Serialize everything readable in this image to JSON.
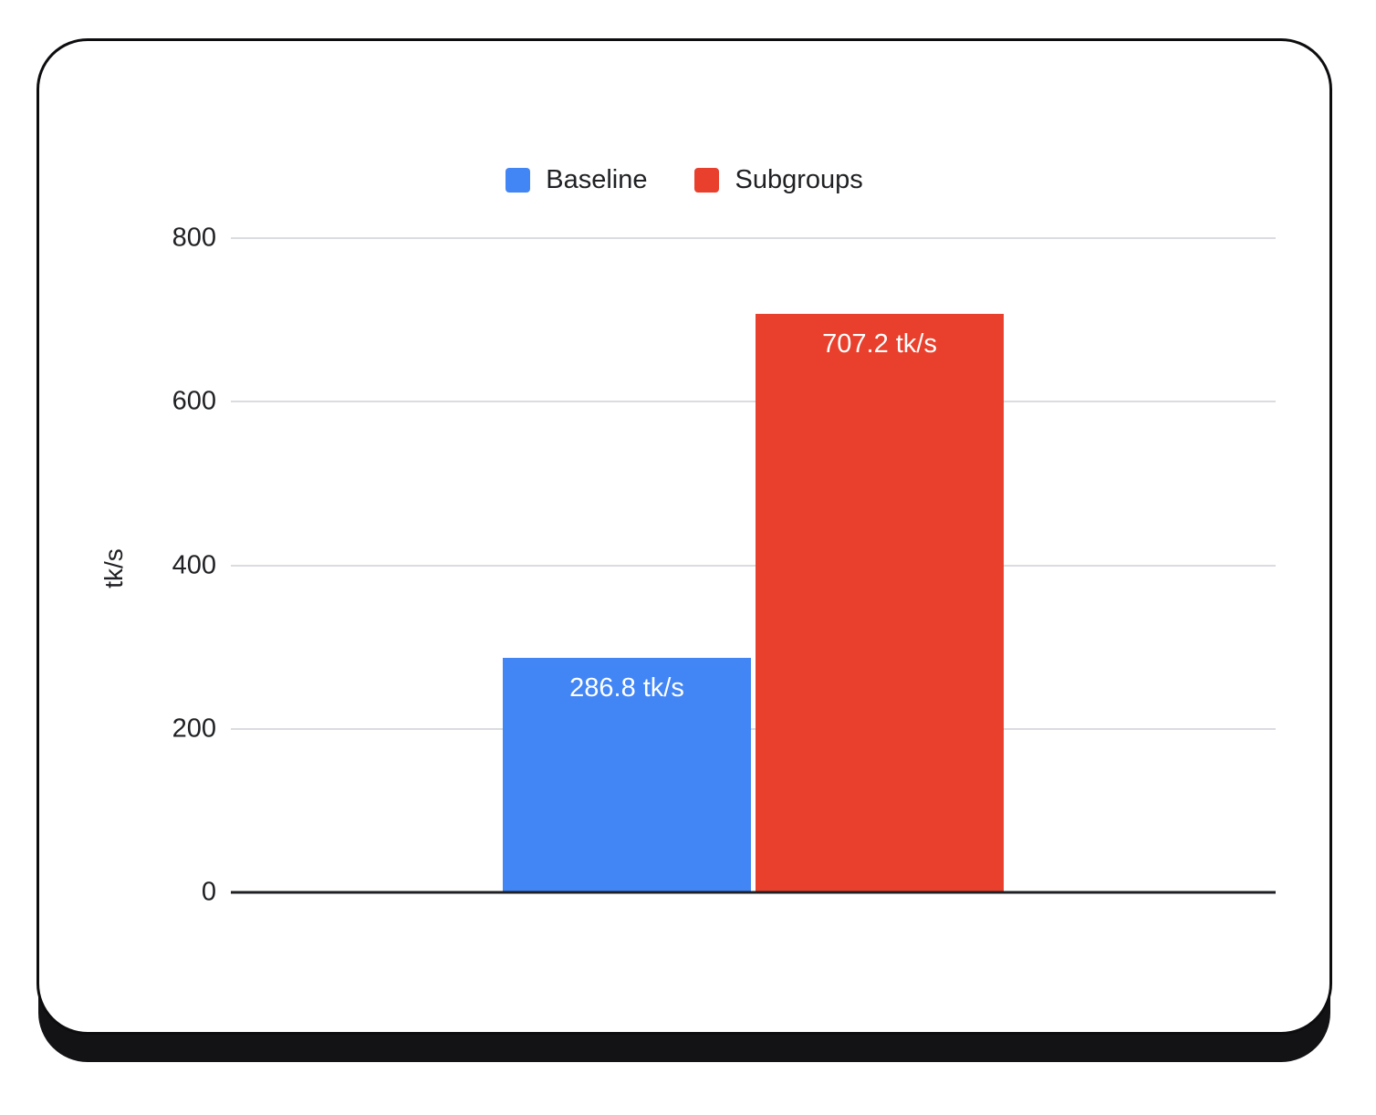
{
  "colors": {
    "baseline_bar": "#4285f4",
    "subgroups_bar": "#e8402d",
    "gridline": "#dadce0",
    "axis_line": "#1f2023",
    "text": "#202124",
    "bar_label_text": "#ffffff",
    "card_background": "#ffffff",
    "card_border": "#0d0d10",
    "card_shadow": "#131316"
  },
  "legend": {
    "position": "top",
    "items": [
      {
        "label": "Baseline",
        "color": "#4285f4"
      },
      {
        "label": "Subgroups",
        "color": "#e8402d"
      }
    ]
  },
  "y_axis": {
    "label": "tk/s",
    "ticks": [
      0,
      200,
      400,
      600,
      800
    ],
    "max": 800
  },
  "chart_data": {
    "type": "bar",
    "title": "",
    "xlabel": "",
    "ylabel": "tk/s",
    "ylim": [
      0,
      800
    ],
    "grid": true,
    "legend_position": "top",
    "categories": [
      ""
    ],
    "series": [
      {
        "name": "Baseline",
        "values": [
          286.8
        ],
        "data_label": "286.8 tk/s",
        "color": "#4285f4"
      },
      {
        "name": "Subgroups",
        "values": [
          707.2
        ],
        "data_label": "707.2 tk/s",
        "color": "#e8402d"
      }
    ]
  }
}
